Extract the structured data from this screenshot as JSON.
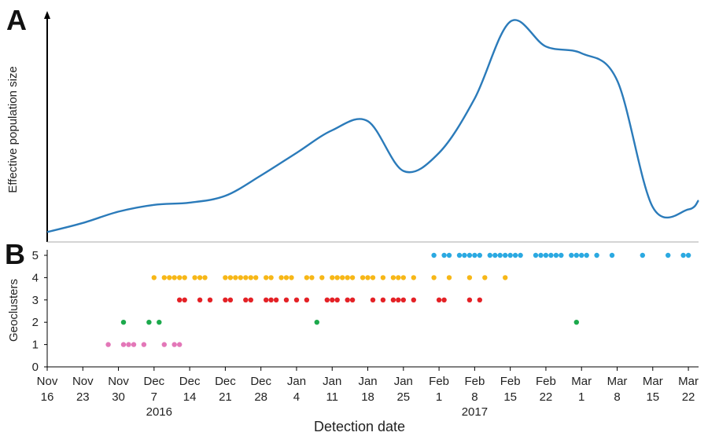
{
  "chart_data": [
    {
      "panel": "A",
      "type": "line",
      "ylabel": "Effective population size",
      "y_ticks_shown": false,
      "color": "#2b7bba",
      "series": [
        {
          "x": [
            "2016-11-16",
            "2016-11-23",
            "2016-11-30",
            "2016-12-07",
            "2016-12-14",
            "2016-12-21",
            "2016-12-28",
            "2017-01-04",
            "2017-01-11",
            "2017-01-18",
            "2017-01-25",
            "2017-02-01",
            "2017-02-08",
            "2017-02-15",
            "2017-02-22",
            "2017-03-01",
            "2017-03-08",
            "2017-03-15",
            "2017-03-22",
            "2017-03-24"
          ],
          "values": [
            0.03,
            0.07,
            0.12,
            0.15,
            0.16,
            0.19,
            0.28,
            0.38,
            0.48,
            0.52,
            0.3,
            0.38,
            0.62,
            0.96,
            0.85,
            0.82,
            0.7,
            0.14,
            0.13,
            0.17
          ]
        }
      ]
    },
    {
      "panel": "B",
      "type": "scatter",
      "ylabel": "Geoclusters",
      "xlabel": "Detection date",
      "yticks": [
        "0",
        "1",
        "2",
        "3",
        "4",
        "5"
      ],
      "ylim": [
        0,
        5
      ],
      "xlim": [
        "2016-11-16",
        "2017-03-24"
      ],
      "xticks": [
        {
          "top": "Nov",
          "bottom": "16"
        },
        {
          "top": "Nov",
          "bottom": "23"
        },
        {
          "top": "Nov",
          "bottom": "30"
        },
        {
          "top": "Dec",
          "bottom": "7"
        },
        {
          "top": "Dec",
          "bottom": "14"
        },
        {
          "top": "Dec",
          "bottom": "21"
        },
        {
          "top": "Dec",
          "bottom": "28"
        },
        {
          "top": "Jan",
          "bottom": "4"
        },
        {
          "top": "Jan",
          "bottom": "11"
        },
        {
          "top": "Jan",
          "bottom": "18"
        },
        {
          "top": "Jan",
          "bottom": "25"
        },
        {
          "top": "Feb",
          "bottom": "1"
        },
        {
          "top": "Feb",
          "bottom": "8"
        },
        {
          "top": "Feb",
          "bottom": "15"
        },
        {
          "top": "Feb",
          "bottom": "22"
        },
        {
          "top": "Mar",
          "bottom": "1"
        },
        {
          "top": "Mar",
          "bottom": "8"
        },
        {
          "top": "Mar",
          "bottom": "15"
        },
        {
          "top": "Mar",
          "bottom": "22"
        }
      ],
      "year_labels": [
        {
          "text": "2016",
          "date": "2016-12-08"
        },
        {
          "text": "2017",
          "date": "2017-02-08"
        }
      ],
      "series": [
        {
          "geocluster": 1,
          "color": "#e377b8",
          "x": [
            "2016-11-28",
            "2016-12-01",
            "2016-12-02",
            "2016-12-03",
            "2016-12-05",
            "2016-12-09",
            "2016-12-11",
            "2016-12-12"
          ]
        },
        {
          "geocluster": 2,
          "color": "#1ca94c",
          "x": [
            "2016-12-01",
            "2016-12-06",
            "2016-12-08",
            "2017-01-08",
            "2017-02-28"
          ]
        },
        {
          "geocluster": 3,
          "color": "#e42126",
          "x": [
            "2016-12-12",
            "2016-12-13",
            "2016-12-16",
            "2016-12-18",
            "2016-12-21",
            "2016-12-22",
            "2016-12-25",
            "2016-12-26",
            "2016-12-29",
            "2016-12-30",
            "2016-12-31",
            "2017-01-02",
            "2017-01-04",
            "2017-01-06",
            "2017-01-10",
            "2017-01-11",
            "2017-01-12",
            "2017-01-14",
            "2017-01-15",
            "2017-01-19",
            "2017-01-21",
            "2017-01-23",
            "2017-01-24",
            "2017-01-25",
            "2017-01-27",
            "2017-02-01",
            "2017-02-02",
            "2017-02-07",
            "2017-02-09"
          ]
        },
        {
          "geocluster": 4,
          "color": "#f7b717",
          "x": [
            "2016-12-07",
            "2016-12-09",
            "2016-12-10",
            "2016-12-11",
            "2016-12-12",
            "2016-12-13",
            "2016-12-15",
            "2016-12-16",
            "2016-12-17",
            "2016-12-21",
            "2016-12-22",
            "2016-12-23",
            "2016-12-24",
            "2016-12-25",
            "2016-12-26",
            "2016-12-27",
            "2016-12-29",
            "2016-12-30",
            "2017-01-01",
            "2017-01-02",
            "2017-01-03",
            "2017-01-06",
            "2017-01-07",
            "2017-01-09",
            "2017-01-11",
            "2017-01-12",
            "2017-01-13",
            "2017-01-14",
            "2017-01-15",
            "2017-01-17",
            "2017-01-18",
            "2017-01-19",
            "2017-01-21",
            "2017-01-23",
            "2017-01-24",
            "2017-01-25",
            "2017-01-27",
            "2017-01-31",
            "2017-02-03",
            "2017-02-07",
            "2017-02-10",
            "2017-02-14"
          ]
        },
        {
          "geocluster": 5,
          "color": "#2ba9e1",
          "x": [
            "2017-01-31",
            "2017-02-02",
            "2017-02-03",
            "2017-02-05",
            "2017-02-06",
            "2017-02-07",
            "2017-02-08",
            "2017-02-09",
            "2017-02-11",
            "2017-02-12",
            "2017-02-13",
            "2017-02-14",
            "2017-02-15",
            "2017-02-16",
            "2017-02-17",
            "2017-02-20",
            "2017-02-21",
            "2017-02-22",
            "2017-02-23",
            "2017-02-24",
            "2017-02-25",
            "2017-02-27",
            "2017-02-28",
            "2017-03-01",
            "2017-03-02",
            "2017-03-04",
            "2017-03-07",
            "2017-03-13",
            "2017-03-18",
            "2017-03-21",
            "2017-03-22"
          ]
        }
      ]
    }
  ]
}
